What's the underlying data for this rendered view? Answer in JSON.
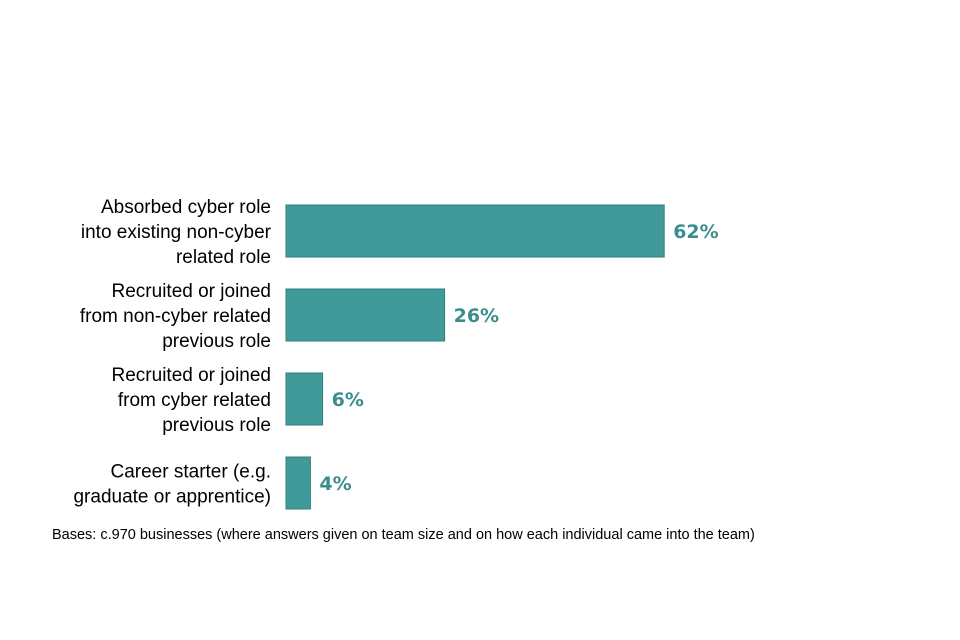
{
  "chart_data": {
    "type": "bar",
    "orientation": "horizontal",
    "categories": [
      [
        "Absorbed cyber role",
        "into existing non-cyber",
        "related role"
      ],
      [
        "Recruited or joined",
        "from non-cyber related",
        "previous role"
      ],
      [
        "Recruited or joined",
        "from cyber related",
        "previous role"
      ],
      [
        "Career starter (e.g.",
        "graduate or apprentice)"
      ]
    ],
    "values": [
      62,
      26,
      6,
      4
    ],
    "value_labels": [
      "62%",
      "26%",
      "6%",
      "4%"
    ],
    "unit": "%",
    "xlim": [
      0,
      100
    ],
    "grid": false,
    "legend": "none",
    "bar_color": "#419a9a",
    "label_color": "#3b8e8e"
  },
  "footnote": "Bases: c.970 businesses (where answers given on team size and on how each individual came into the team)"
}
